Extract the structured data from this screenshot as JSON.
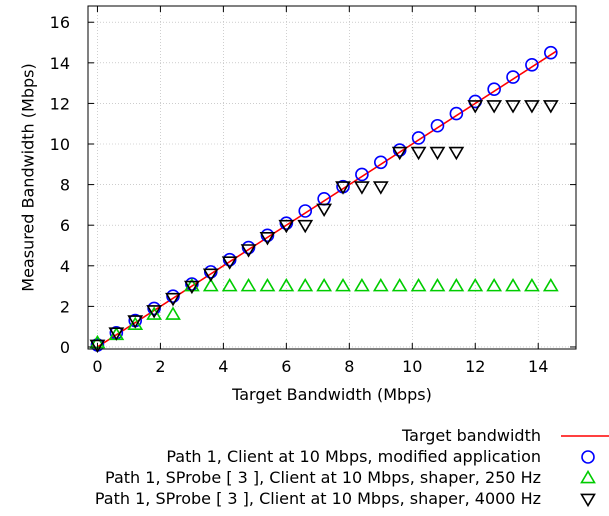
{
  "chart_data": {
    "type": "scatter",
    "title": "",
    "xlabel": "Target Bandwidth (Mbps)",
    "ylabel": "Measured Bandwidth (Mbps)",
    "xlim": [
      -0.3,
      15.2
    ],
    "ylim": [
      -0.1,
      16.8
    ],
    "x_ticks": [
      "0",
      "2",
      "4",
      "6",
      "8",
      "10",
      "12",
      "14"
    ],
    "y_ticks": [
      "0",
      "2",
      "4",
      "6",
      "8",
      "10",
      "12",
      "14",
      "16"
    ],
    "x_tick_values": [
      0,
      2,
      4,
      6,
      8,
      10,
      12,
      14
    ],
    "y_tick_values": [
      0,
      2,
      4,
      6,
      8,
      10,
      12,
      14,
      16
    ],
    "grid": true,
    "legend_position": "bottom-right, below plot",
    "series": [
      {
        "name": "Target bandwidth",
        "kind": "line",
        "color": "#ff0000",
        "x": [
          0,
          14.6
        ],
        "y": [
          0,
          14.6
        ]
      },
      {
        "name": "Path 1, Client at 10 Mbps, modified application",
        "kind": "circle",
        "color": "#0000ff",
        "x": [
          0,
          0.6,
          1.2,
          1.8,
          2.4,
          3.0,
          3.6,
          4.2,
          4.8,
          5.4,
          6.0,
          6.6,
          7.2,
          7.8,
          8.4,
          9.0,
          9.6,
          10.2,
          10.8,
          11.4,
          12.0,
          12.6,
          13.2,
          13.8,
          14.4
        ],
        "y": [
          0.1,
          0.7,
          1.3,
          1.9,
          2.5,
          3.1,
          3.7,
          4.3,
          4.9,
          5.5,
          6.1,
          6.7,
          7.3,
          7.9,
          8.5,
          9.1,
          9.7,
          10.3,
          10.9,
          11.5,
          12.1,
          12.7,
          13.3,
          13.9,
          14.5
        ]
      },
      {
        "name": "Path 1, SProbe [ 3 ], Client at 10 Mbps, shaper, 250 Hz",
        "kind": "triangle-up",
        "color": "#00cc00",
        "x": [
          0,
          0.6,
          1.2,
          1.8,
          2.4,
          3.0,
          3.6,
          4.2,
          4.8,
          5.4,
          6.0,
          6.6,
          7.2,
          7.8,
          8.4,
          9.0,
          9.6,
          10.2,
          10.8,
          11.4,
          12.0,
          12.6,
          13.2,
          13.8,
          14.4
        ],
        "y": [
          0.2,
          0.6,
          1.1,
          1.6,
          1.6,
          3.0,
          3.0,
          3.0,
          3.0,
          3.0,
          3.0,
          3.0,
          3.0,
          3.0,
          3.0,
          3.0,
          3.0,
          3.0,
          3.0,
          3.0,
          3.0,
          3.0,
          3.0,
          3.0,
          3.0
        ]
      },
      {
        "name": "Path 1, SProbe [ 3 ], Client at 10 Mbps, shaper, 4000 Hz",
        "kind": "triangle-down",
        "color": "#000000",
        "x": [
          0,
          0.6,
          1.2,
          1.8,
          2.4,
          3.0,
          3.6,
          4.2,
          4.8,
          5.4,
          6.0,
          6.6,
          7.2,
          7.8,
          8.4,
          9.0,
          9.6,
          10.2,
          10.8,
          11.4,
          12.0,
          12.6,
          13.2,
          13.8,
          14.4
        ],
        "y": [
          0.1,
          0.7,
          1.3,
          1.8,
          2.4,
          3.0,
          3.6,
          4.2,
          4.8,
          5.4,
          6.0,
          6.0,
          6.8,
          7.9,
          7.9,
          7.9,
          9.6,
          9.6,
          9.6,
          9.6,
          11.9,
          11.9,
          11.9,
          11.9,
          11.9
        ]
      }
    ]
  }
}
